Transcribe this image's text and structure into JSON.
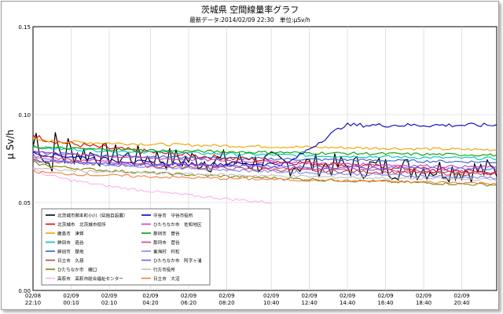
{
  "chart_data": {
    "type": "line",
    "title": "茨城県 空間線量率グラフ",
    "subtitle": "最新データ:2014/02/09 22:30　単位:μSv/h",
    "ylabel": "μ Sv/h",
    "xlabel": "",
    "ylim": [
      0.0,
      0.15
    ],
    "yticks": [
      "0.00",
      "0.05",
      "0.10",
      "0.15"
    ],
    "ytick_values": [
      0.0,
      0.05,
      0.1,
      0.15
    ],
    "xlim": [
      0,
      146
    ],
    "xticks": [
      {
        "day": "02/08",
        "time": "22:10",
        "pos": 0
      },
      {
        "day": "02/09",
        "time": "00:10",
        "pos": 12
      },
      {
        "day": "02/09",
        "time": "02:10",
        "pos": 24
      },
      {
        "day": "02/09",
        "time": "04:20",
        "pos": 37
      },
      {
        "day": "02/09",
        "time": "06:20",
        "pos": 49
      },
      {
        "day": "02/09",
        "time": "08:20",
        "pos": 61
      },
      {
        "day": "02/09",
        "time": "10:40",
        "pos": 75
      },
      {
        "day": "02/09",
        "time": "12:40",
        "pos": 87
      },
      {
        "day": "02/09",
        "time": "14:40",
        "pos": 99
      },
      {
        "day": "02/09",
        "time": "16:40",
        "pos": 111
      },
      {
        "day": "02/09",
        "time": "18:40",
        "pos": 123
      },
      {
        "day": "02/09",
        "time": "20:40",
        "pos": 135
      }
    ],
    "grid": true,
    "legend_position": "bottom-left",
    "series": [
      {
        "name": "北茨城市関本町小川（県独自設置）",
        "color": "#000000",
        "start": 0.082,
        "end": 0.068,
        "noise": 0.007,
        "from": 0,
        "to": 146,
        "kind": "noisy"
      },
      {
        "name": "北茨城市　北茨城市役所",
        "color": "#e00000",
        "start": 0.089,
        "end": 0.067,
        "noise": 0.0015,
        "from": 0,
        "to": 146
      },
      {
        "name": "鹿島市　津賀",
        "color": "#f0a000",
        "start": 0.086,
        "end": 0.08,
        "noise": 0.0008,
        "from": 0,
        "to": 146
      },
      {
        "name": "鉾田市　造谷",
        "color": "#00c0c0",
        "start": 0.082,
        "end": 0.075,
        "noise": 0.0008,
        "from": 0,
        "to": 146
      },
      {
        "name": "鉾田市　楚地",
        "color": "#3060d0",
        "start": 0.079,
        "end": 0.073,
        "noise": 0.0008,
        "from": 0,
        "to": 146
      },
      {
        "name": "日立市　久慈",
        "color": "#c04040",
        "start": 0.075,
        "end": 0.066,
        "noise": 0.001,
        "from": 0,
        "to": 146
      },
      {
        "name": "ひたちなか市　磯口",
        "color": "#808000",
        "start": 0.073,
        "end": 0.06,
        "noise": 0.0008,
        "from": 0,
        "to": 146
      },
      {
        "name": "高萩市　高萩市総合福祉センター",
        "color": "#ffb0f0",
        "start": 0.07,
        "end": 0.05,
        "noise": 0.0008,
        "from": 0,
        "to": 75
      },
      {
        "name": "守谷市　守谷市役所",
        "color": "#0000c0",
        "start": 0.078,
        "end": 0.094,
        "noise": 0.0012,
        "from": 0,
        "to": 146,
        "kind": "step"
      },
      {
        "name": "ひたちなか市　佐和地区",
        "color": "#c040c0",
        "start": 0.08,
        "end": 0.07,
        "noise": 0.0008,
        "from": 0,
        "to": 146
      },
      {
        "name": "那珂市　菅谷",
        "color": "#00a000",
        "start": 0.082,
        "end": 0.077,
        "noise": 0.0008,
        "from": 0,
        "to": 146
      },
      {
        "name": "那珂市　菅谷",
        "color": "#d04090",
        "start": 0.077,
        "end": 0.067,
        "noise": 0.0008,
        "from": 0,
        "to": 146
      },
      {
        "name": "東海村　村松",
        "color": "#8080ff",
        "start": 0.076,
        "end": 0.064,
        "noise": 0.0008,
        "from": 0,
        "to": 146
      },
      {
        "name": "ひたちなか市　阿字ヶ浦",
        "color": "#6060ff",
        "start": 0.074,
        "end": 0.069,
        "noise": 0.0008,
        "from": 0,
        "to": 146
      },
      {
        "name": "行方市役所",
        "color": "#c0c0c0",
        "start": 0.07,
        "end": 0.063,
        "noise": 0.0008,
        "from": 0,
        "to": 146
      },
      {
        "name": "日立市　大沼",
        "color": "#f08040",
        "start": 0.068,
        "end": 0.061,
        "noise": 0.0008,
        "from": 0,
        "to": 146
      }
    ]
  },
  "legend": {
    "left": [
      "北茨城市関本町小川（県独自設置）",
      "北茨城市　北茨城市役所",
      "鹿島市　津賀",
      "鉾田市　造谷",
      "鉾田市　楚地",
      "日立市　久慈",
      "ひたちなか市　磯口",
      "高萩市　高萩市総合福祉センター"
    ],
    "right": [
      "守谷市　守谷市役所",
      "ひたちなか市　佐和地区",
      "那珂市　菅谷",
      "那珂市　菅谷",
      "東海村　村松",
      "ひたちなか市　阿字ヶ浦",
      "行方市役所",
      "日立市　大沼"
    ]
  }
}
